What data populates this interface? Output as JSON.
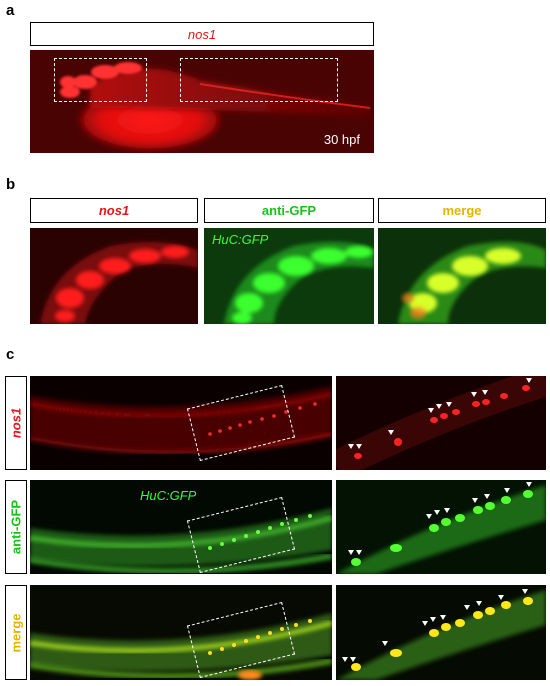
{
  "panel_a": {
    "label": "a",
    "header": "nos1",
    "stage_label": "30 hpf"
  },
  "panel_b": {
    "label": "b",
    "headers": [
      "nos1",
      "anti-GFP",
      "merge"
    ],
    "inset_label": "HuC:GFP"
  },
  "panel_c": {
    "label": "c",
    "row_labels": [
      "nos1",
      "anti-GFP",
      "merge"
    ],
    "inset_label": "HuC:GFP"
  }
}
